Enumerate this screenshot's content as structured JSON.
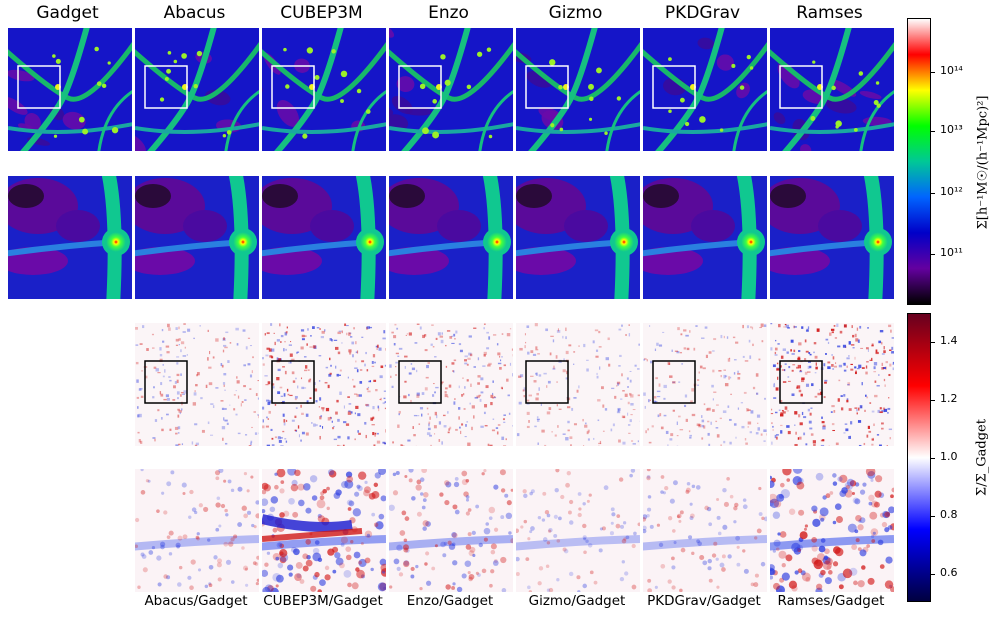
{
  "column_titles": [
    "Gadget",
    "Abacus",
    "CUBEP3M",
    "Enzo",
    "Gizmo",
    "PKDGrav",
    "Ramses"
  ],
  "ratio_labels": [
    "Abacus/Gadget",
    "CUBEP3M/Gadget",
    "Enzo/Gadget",
    "Gizmo/Gadget",
    "PKDGrav/Gadget",
    "Ramses/Gadget"
  ],
  "colorbar_density": {
    "label": "Σ[h⁻¹M☉/(h⁻¹Mpc)²]",
    "ticks": [
      "10¹⁴",
      "10¹³",
      "10¹²",
      "10¹¹"
    ],
    "colors": [
      "#fefefe",
      "#ff0000",
      "#ffff00",
      "#00ff00",
      "#00c896",
      "#0064ff",
      "#0000c8",
      "#6400a0",
      "#000000"
    ]
  },
  "colorbar_ratio": {
    "label": "Σ/Σ_Gadget",
    "ticks": [
      "1.4",
      "1.2",
      "1.0",
      "0.8",
      "0.6"
    ],
    "colors": [
      "#67001f",
      "#ff0000",
      "#ffffff",
      "#0000ff",
      "#000040"
    ]
  }
}
